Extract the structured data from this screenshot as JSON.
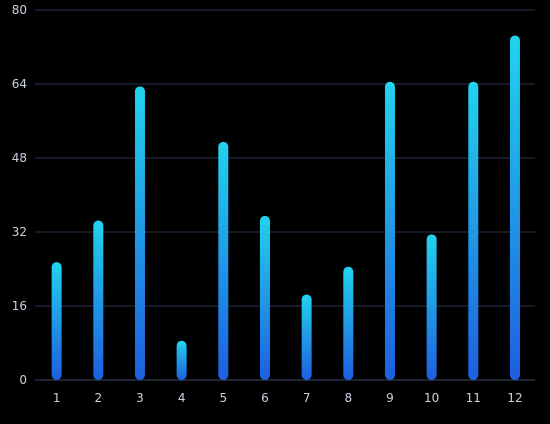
{
  "chart_data": {
    "type": "bar",
    "categories": [
      "1",
      "2",
      "3",
      "4",
      "5",
      "6",
      "7",
      "8",
      "9",
      "10",
      "11",
      "12"
    ],
    "values": [
      25.5,
      34.5,
      63.5,
      8.5,
      51.5,
      35.5,
      18.5,
      24.5,
      64.5,
      31.5,
      64.5,
      74.5
    ],
    "yticks": [
      "0",
      "16",
      "32",
      "48",
      "64",
      "80"
    ],
    "ylim": [
      0,
      80
    ],
    "title": "",
    "xlabel": "",
    "ylabel": "",
    "grid": true,
    "colors": {
      "background": "#000000",
      "grid": "#2a3550",
      "axis": "#3a4a6a",
      "bar_top": "#22d3ee",
      "bar_bottom": "#1d5fe0",
      "tick_label": "#c9d1e0"
    }
  }
}
